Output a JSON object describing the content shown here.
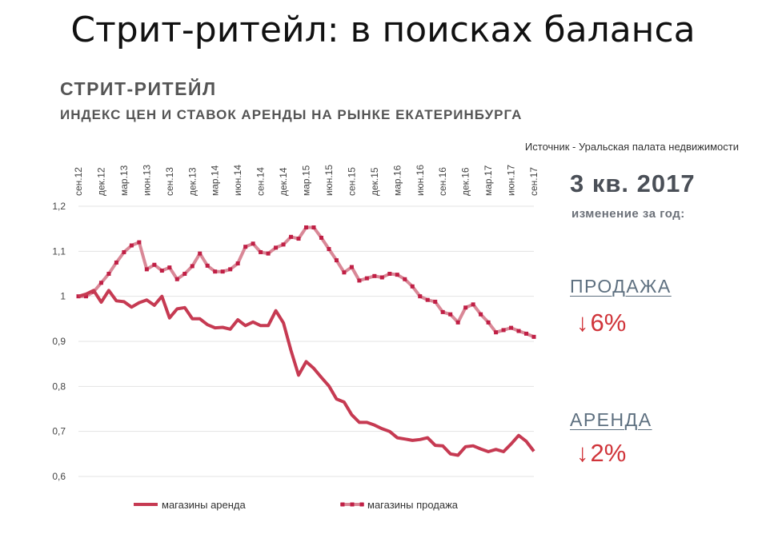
{
  "slide_title": "Стрит-ритейл: в поисках баланса",
  "source": "Источник - Уральская палата недвижимости",
  "summary": {
    "period": "3 кв. 2017",
    "period_sub": "изменение за год:",
    "sale_label": "ПРОДАЖА",
    "sale_change": "6%",
    "rent_label": "АРЕНДА",
    "rent_change": "2%",
    "arrow_icon": "arrow-down-icon"
  },
  "colors": {
    "rent": "#c63a52",
    "sale": "#d98897",
    "sale_marker": "#c01f45",
    "grid": "#e3e3e3",
    "accent": "#d0343a"
  },
  "chart_data": {
    "type": "line",
    "title": "СТРИТ-РИТЕЙЛ",
    "subtitle": "ИНДЕКС ЦЕН И СТАВОК АРЕНДЫ НА РЫНКЕ ЕКАТЕРИНБУРГА",
    "xlabel": "",
    "ylabel": "",
    "ylim": [
      0.6,
      1.2
    ],
    "grid": true,
    "y_ticks": [
      {
        "value": 0.6,
        "label": "0,6"
      },
      {
        "value": 0.7,
        "label": "0,7"
      },
      {
        "value": 0.8,
        "label": "0,8"
      },
      {
        "value": 0.9,
        "label": "0,9"
      },
      {
        "value": 1.0,
        "label": "1"
      },
      {
        "value": 1.1,
        "label": "1,1"
      },
      {
        "value": 1.2,
        "label": "1,2"
      }
    ],
    "x_count": 61,
    "x_ticks": [
      {
        "index": 0,
        "label": "сен.12"
      },
      {
        "index": 3,
        "label": "дек.12"
      },
      {
        "index": 6,
        "label": "мар.13"
      },
      {
        "index": 9,
        "label": "июн.13"
      },
      {
        "index": 12,
        "label": "сен.13"
      },
      {
        "index": 15,
        "label": "дек.13"
      },
      {
        "index": 18,
        "label": "мар.14"
      },
      {
        "index": 21,
        "label": "июн.14"
      },
      {
        "index": 24,
        "label": "сен.14"
      },
      {
        "index": 27,
        "label": "дек.14"
      },
      {
        "index": 30,
        "label": "мар.15"
      },
      {
        "index": 33,
        "label": "июн.15"
      },
      {
        "index": 36,
        "label": "сен.15"
      },
      {
        "index": 39,
        "label": "дек.15"
      },
      {
        "index": 42,
        "label": "мар.16"
      },
      {
        "index": 45,
        "label": "июн.16"
      },
      {
        "index": 48,
        "label": "сен.16"
      },
      {
        "index": 51,
        "label": "дек.16"
      },
      {
        "index": 54,
        "label": "мар.17"
      },
      {
        "index": 57,
        "label": "июн.17"
      },
      {
        "index": 60,
        "label": "сен.17"
      }
    ],
    "series": [
      {
        "name": "магазины аренда",
        "style": "line",
        "values": [
          1.0,
          1.005,
          1.013,
          0.987,
          1.013,
          0.99,
          0.988,
          0.976,
          0.986,
          0.992,
          0.98,
          1.0,
          0.952,
          0.972,
          0.975,
          0.95,
          0.95,
          0.937,
          0.93,
          0.931,
          0.927,
          0.948,
          0.935,
          0.943,
          0.935,
          0.935,
          0.968,
          0.941,
          0.88,
          0.825,
          0.855,
          0.84,
          0.82,
          0.801,
          0.772,
          0.765,
          0.737,
          0.72,
          0.72,
          0.714,
          0.706,
          0.7,
          0.686,
          0.683,
          0.68,
          0.682,
          0.686,
          0.669,
          0.668,
          0.65,
          0.647,
          0.666,
          0.668,
          0.661,
          0.655,
          0.66,
          0.655,
          0.672,
          0.691,
          0.678,
          0.656
        ]
      },
      {
        "name": "магазины продажа",
        "style": "line-markers",
        "values": [
          1.0,
          1.0,
          1.01,
          1.03,
          1.05,
          1.075,
          1.098,
          1.113,
          1.12,
          1.06,
          1.07,
          1.057,
          1.064,
          1.038,
          1.05,
          1.067,
          1.095,
          1.068,
          1.055,
          1.055,
          1.06,
          1.073,
          1.11,
          1.117,
          1.098,
          1.095,
          1.108,
          1.115,
          1.132,
          1.128,
          1.153,
          1.153,
          1.13,
          1.105,
          1.08,
          1.053,
          1.065,
          1.035,
          1.04,
          1.045,
          1.042,
          1.05,
          1.048,
          1.038,
          1.022,
          1.0,
          0.992,
          0.988,
          0.965,
          0.96,
          0.942,
          0.975,
          0.982,
          0.96,
          0.942,
          0.92,
          0.925,
          0.93,
          0.923,
          0.917,
          0.91
        ]
      }
    ],
    "legend": [
      {
        "name": "магазины аренда",
        "style": "line"
      },
      {
        "name": "магазины продажа",
        "style": "line-markers"
      }
    ],
    "legend_position": "bottom"
  }
}
